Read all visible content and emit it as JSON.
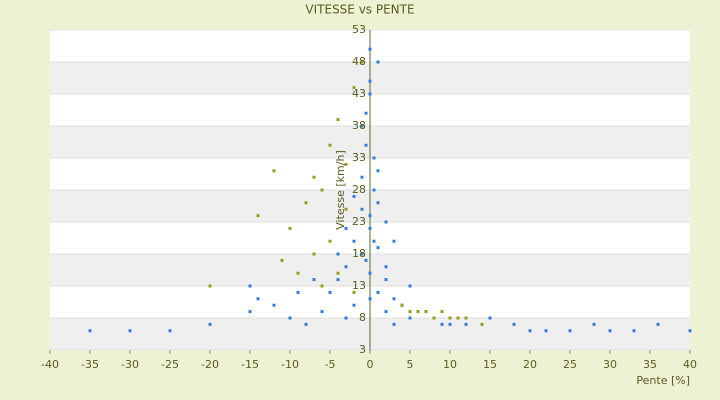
{
  "chart_data": {
    "type": "scatter",
    "title": "VITESSE vs PENTE",
    "x_label": "Pente [%]",
    "y_label": "Vitesse [km/h]",
    "xlim": [
      -40,
      40
    ],
    "xticks": [
      -40,
      -35,
      -30,
      -25,
      -20,
      -15,
      -10,
      -5,
      0,
      5,
      10,
      15,
      20,
      25,
      30,
      35,
      40
    ],
    "ylim": [
      3,
      53
    ],
    "yticks": [
      3,
      8,
      13,
      18,
      23,
      28,
      33,
      38,
      43,
      48,
      53
    ],
    "grid": true,
    "series": [
      {
        "color": "#2f7fd8",
        "x": [
          -35,
          -30,
          -25,
          -20,
          -15,
          -12,
          -10,
          -8,
          -6,
          -5,
          -4,
          -3,
          -3,
          -2,
          -2,
          -1,
          -1,
          -1,
          -0.5,
          -0.5,
          0,
          0,
          0,
          0,
          0.5,
          0.5,
          1,
          1,
          1,
          2,
          2,
          2,
          3,
          3,
          4,
          5,
          6,
          7,
          8,
          10,
          12,
          15,
          18,
          20,
          22,
          25,
          28,
          30,
          33,
          36,
          40,
          -1,
          0,
          1,
          -2,
          0.5,
          -0.5,
          2,
          -3,
          1,
          0,
          -15,
          -14,
          -9,
          -7,
          3,
          5,
          9,
          -4,
          0
        ],
        "values": [
          6,
          6,
          6,
          7,
          9,
          10,
          8,
          7,
          9,
          12,
          14,
          8,
          16,
          20,
          10,
          30,
          25,
          18,
          40,
          35,
          50,
          45,
          22,
          15,
          28,
          33,
          12,
          19,
          26,
          9,
          14,
          23,
          11,
          7,
          10,
          8,
          9,
          9,
          8,
          7,
          7,
          8,
          7,
          6,
          6,
          6,
          7,
          6,
          6,
          7,
          6,
          38,
          43,
          48,
          27,
          20,
          17,
          16,
          22,
          31,
          11,
          13,
          11,
          12,
          14,
          20,
          13,
          7,
          18,
          24
        ]
      },
      {
        "color": "#9a9a1a",
        "x": [
          -12,
          -10,
          -8,
          -7,
          -6,
          -5,
          -5,
          -4,
          -4,
          -3,
          -3,
          -2,
          -6,
          -9,
          -11,
          -20,
          -14,
          4,
          5,
          6,
          7,
          8,
          9,
          10,
          11,
          12,
          14,
          -1,
          -2,
          -7
        ],
        "values": [
          31,
          22,
          26,
          18,
          28,
          35,
          20,
          39,
          15,
          25,
          32,
          12,
          13,
          15,
          17,
          13,
          24,
          10,
          9,
          9,
          9,
          8,
          9,
          8,
          8,
          8,
          7,
          48,
          44,
          30
        ]
      }
    ]
  }
}
